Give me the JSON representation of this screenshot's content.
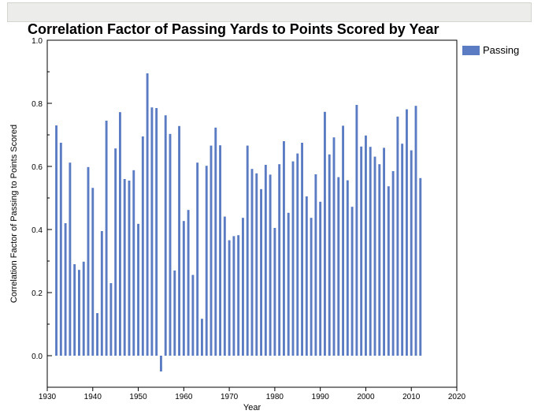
{
  "window": {
    "toolbar": ""
  },
  "chart_data": {
    "type": "bar",
    "title": "Correlation Factor of Passing Yards to Points Scored by Year",
    "xlabel": "Year",
    "ylabel": "Correlation Factor of Passing to Points Scored",
    "xlim": [
      1930,
      2020
    ],
    "ylim": [
      -0.1,
      1.0
    ],
    "xticks": [
      1930,
      1940,
      1950,
      1960,
      1970,
      1980,
      1990,
      2000,
      2010,
      2020
    ],
    "yticks": [
      0.0,
      0.2,
      0.4,
      0.6,
      0.8,
      1.0
    ],
    "ytick_labels": [
      "0.0",
      "0.2",
      "0.4",
      "0.6",
      "0.8",
      "1.0"
    ],
    "legend": {
      "position": "top-right",
      "entries": [
        "Passing"
      ]
    },
    "color": "#5b7bc2",
    "series": [
      {
        "name": "Passing",
        "x": [
          1932,
          1933,
          1934,
          1935,
          1936,
          1937,
          1938,
          1939,
          1940,
          1941,
          1942,
          1943,
          1944,
          1945,
          1946,
          1947,
          1948,
          1949,
          1950,
          1951,
          1952,
          1953,
          1954,
          1955,
          1956,
          1957,
          1958,
          1959,
          1960,
          1961,
          1962,
          1963,
          1964,
          1965,
          1966,
          1967,
          1968,
          1969,
          1970,
          1971,
          1972,
          1973,
          1974,
          1975,
          1976,
          1977,
          1978,
          1979,
          1980,
          1981,
          1982,
          1983,
          1984,
          1985,
          1986,
          1987,
          1988,
          1989,
          1990,
          1991,
          1992,
          1993,
          1994,
          1995,
          1996,
          1997,
          1998,
          1999,
          2000,
          2001,
          2002,
          2003,
          2004,
          2005,
          2006,
          2007,
          2008,
          2009,
          2010,
          2011,
          2012
        ],
        "values": [
          0.73,
          0.675,
          0.42,
          0.612,
          0.29,
          0.272,
          0.298,
          0.598,
          0.532,
          0.135,
          0.395,
          0.745,
          0.23,
          0.657,
          0.772,
          0.56,
          0.555,
          0.588,
          0.418,
          0.695,
          0.895,
          0.787,
          0.785,
          -0.05,
          0.762,
          0.703,
          0.27,
          0.728,
          0.427,
          0.462,
          0.256,
          0.612,
          0.117,
          0.602,
          0.666,
          0.723,
          0.667,
          0.441,
          0.366,
          0.379,
          0.382,
          0.437,
          0.666,
          0.592,
          0.578,
          0.528,
          0.605,
          0.574,
          0.405,
          0.607,
          0.68,
          0.453,
          0.616,
          0.641,
          0.675,
          0.505,
          0.437,
          0.575,
          0.488,
          0.773,
          0.638,
          0.692,
          0.566,
          0.729,
          0.556,
          0.472,
          0.795,
          0.663,
          0.698,
          0.662,
          0.631,
          0.607,
          0.659,
          0.537,
          0.585,
          0.758,
          0.672,
          0.781,
          0.651,
          0.792,
          0.563
        ]
      }
    ]
  }
}
